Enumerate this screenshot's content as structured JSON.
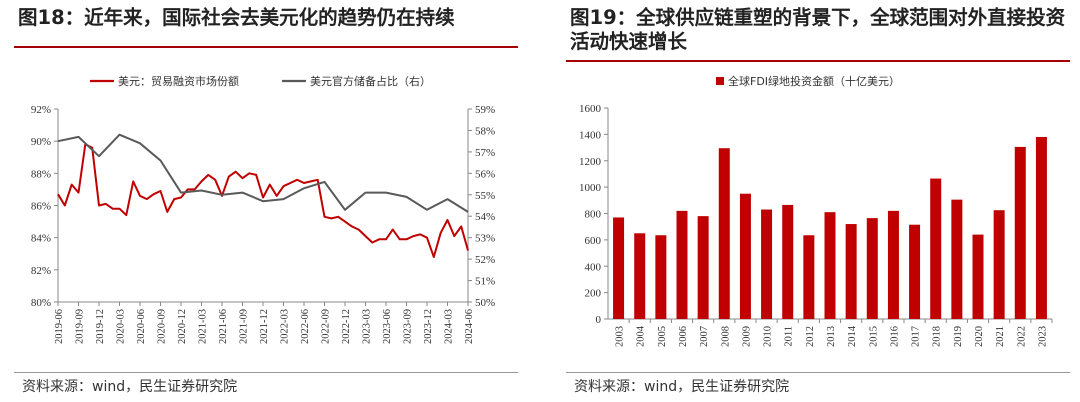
{
  "left": {
    "title": "图18：近年来，国际社会去美元化的趋势仍在持续",
    "source": "资料来源：wind，民生证券研究院",
    "chart_data": {
      "type": "line",
      "series": [
        {
          "name": "美元：贸易融资市场份额",
          "axis": "left",
          "color": "#c00000",
          "x": [
            "2019-06",
            "2019-07",
            "2019-08",
            "2019-09",
            "2019-10",
            "2019-11",
            "2019-12",
            "2020-01",
            "2020-02",
            "2020-03",
            "2020-04",
            "2020-05",
            "2020-06",
            "2020-07",
            "2020-08",
            "2020-09",
            "2020-10",
            "2020-11",
            "2020-12",
            "2021-01",
            "2021-02",
            "2021-03",
            "2021-04",
            "2021-05",
            "2021-06",
            "2021-07",
            "2021-08",
            "2021-09",
            "2021-10",
            "2021-11",
            "2021-12",
            "2022-01",
            "2022-02",
            "2022-03",
            "2022-04",
            "2022-05",
            "2022-06",
            "2022-07",
            "2022-08",
            "2022-09",
            "2022-10",
            "2022-11",
            "2022-12",
            "2023-01",
            "2023-02",
            "2023-03",
            "2023-04",
            "2023-05",
            "2023-06",
            "2023-07",
            "2023-08",
            "2023-09",
            "2023-10",
            "2023-11",
            "2023-12",
            "2024-01",
            "2024-02",
            "2024-03",
            "2024-04",
            "2024-05",
            "2024-06"
          ],
          "values": [
            86.7,
            86.0,
            87.3,
            86.8,
            89.8,
            89.6,
            86.0,
            86.1,
            85.8,
            85.8,
            85.4,
            87.5,
            86.6,
            86.4,
            86.7,
            86.9,
            85.6,
            86.4,
            86.5,
            87.0,
            87.0,
            87.5,
            87.9,
            87.6,
            86.6,
            87.8,
            88.1,
            87.7,
            88.0,
            87.9,
            86.5,
            87.3,
            86.6,
            87.2,
            87.4,
            87.6,
            87.4,
            87.5,
            87.6,
            85.3,
            85.2,
            85.3,
            85.0,
            84.7,
            84.5,
            84.1,
            83.7,
            83.9,
            83.9,
            84.5,
            83.9,
            83.9,
            84.1,
            84.2,
            84.0,
            82.8,
            84.3,
            85.1,
            84.1,
            84.7,
            83.2
          ]
        },
        {
          "name": "美元官方储备占比（右）",
          "axis": "right",
          "color": "#595959",
          "x": [
            "2019-06",
            "2019-09",
            "2019-12",
            "2020-03",
            "2020-06",
            "2020-09",
            "2020-12",
            "2021-03",
            "2021-06",
            "2021-09",
            "2021-12",
            "2022-03",
            "2022-06",
            "2022-09",
            "2022-12",
            "2023-03",
            "2023-06",
            "2023-09",
            "2023-12",
            "2024-03",
            "2024-06"
          ],
          "values": [
            57.5,
            57.7,
            56.8,
            57.8,
            57.4,
            56.6,
            55.1,
            55.2,
            55.0,
            55.1,
            54.7,
            54.8,
            55.3,
            55.6,
            54.3,
            55.1,
            55.1,
            54.9,
            54.3,
            54.8,
            54.2
          ]
        }
      ],
      "xticks": [
        "2019-06",
        "2019-09",
        "2019-12",
        "2020-03",
        "2020-06",
        "2020-09",
        "2020-12",
        "2021-03",
        "2021-06",
        "2021-09",
        "2021-12",
        "2022-03",
        "2022-06",
        "2022-09",
        "2022-12",
        "2023-03",
        "2023-06",
        "2023-09",
        "2023-12",
        "2024-03",
        "2024-06"
      ],
      "ylim_left": [
        80,
        92
      ],
      "yticks_left": [
        "92%",
        "90%",
        "88%",
        "86%",
        "84%",
        "82%",
        "80%"
      ],
      "ylim_right": [
        50,
        59
      ],
      "yticks_right": [
        "59%",
        "58%",
        "57%",
        "56%",
        "55%",
        "54%",
        "53%",
        "52%",
        "51%",
        "50%"
      ],
      "legend": "top",
      "grid": false
    }
  },
  "right": {
    "title": "图19：全球供应链重塑的背景下，全球范围对外直接投资活动快速增长",
    "source": "资料来源：wind，民生证券研究院",
    "chart_data": {
      "type": "bar",
      "categories": [
        "2003",
        "2004",
        "2005",
        "2006",
        "2007",
        "2008",
        "2009",
        "2010",
        "2011",
        "2012",
        "2013",
        "2014",
        "2015",
        "2016",
        "2017",
        "2018",
        "2019",
        "2020",
        "2021",
        "2022",
        "2023"
      ],
      "series": [
        {
          "name": "全球FDI绿地投资金额（十亿美元）",
          "color": "#c00000",
          "values": [
            770,
            650,
            635,
            820,
            780,
            1295,
            950,
            830,
            865,
            635,
            810,
            720,
            765,
            820,
            715,
            1065,
            905,
            640,
            825,
            1305,
            1380
          ]
        }
      ],
      "ylim": [
        0,
        1600
      ],
      "yticks": [
        "1600",
        "1400",
        "1200",
        "1000",
        "800",
        "600",
        "400",
        "200",
        "0"
      ],
      "legend": "top",
      "grid": false
    }
  }
}
